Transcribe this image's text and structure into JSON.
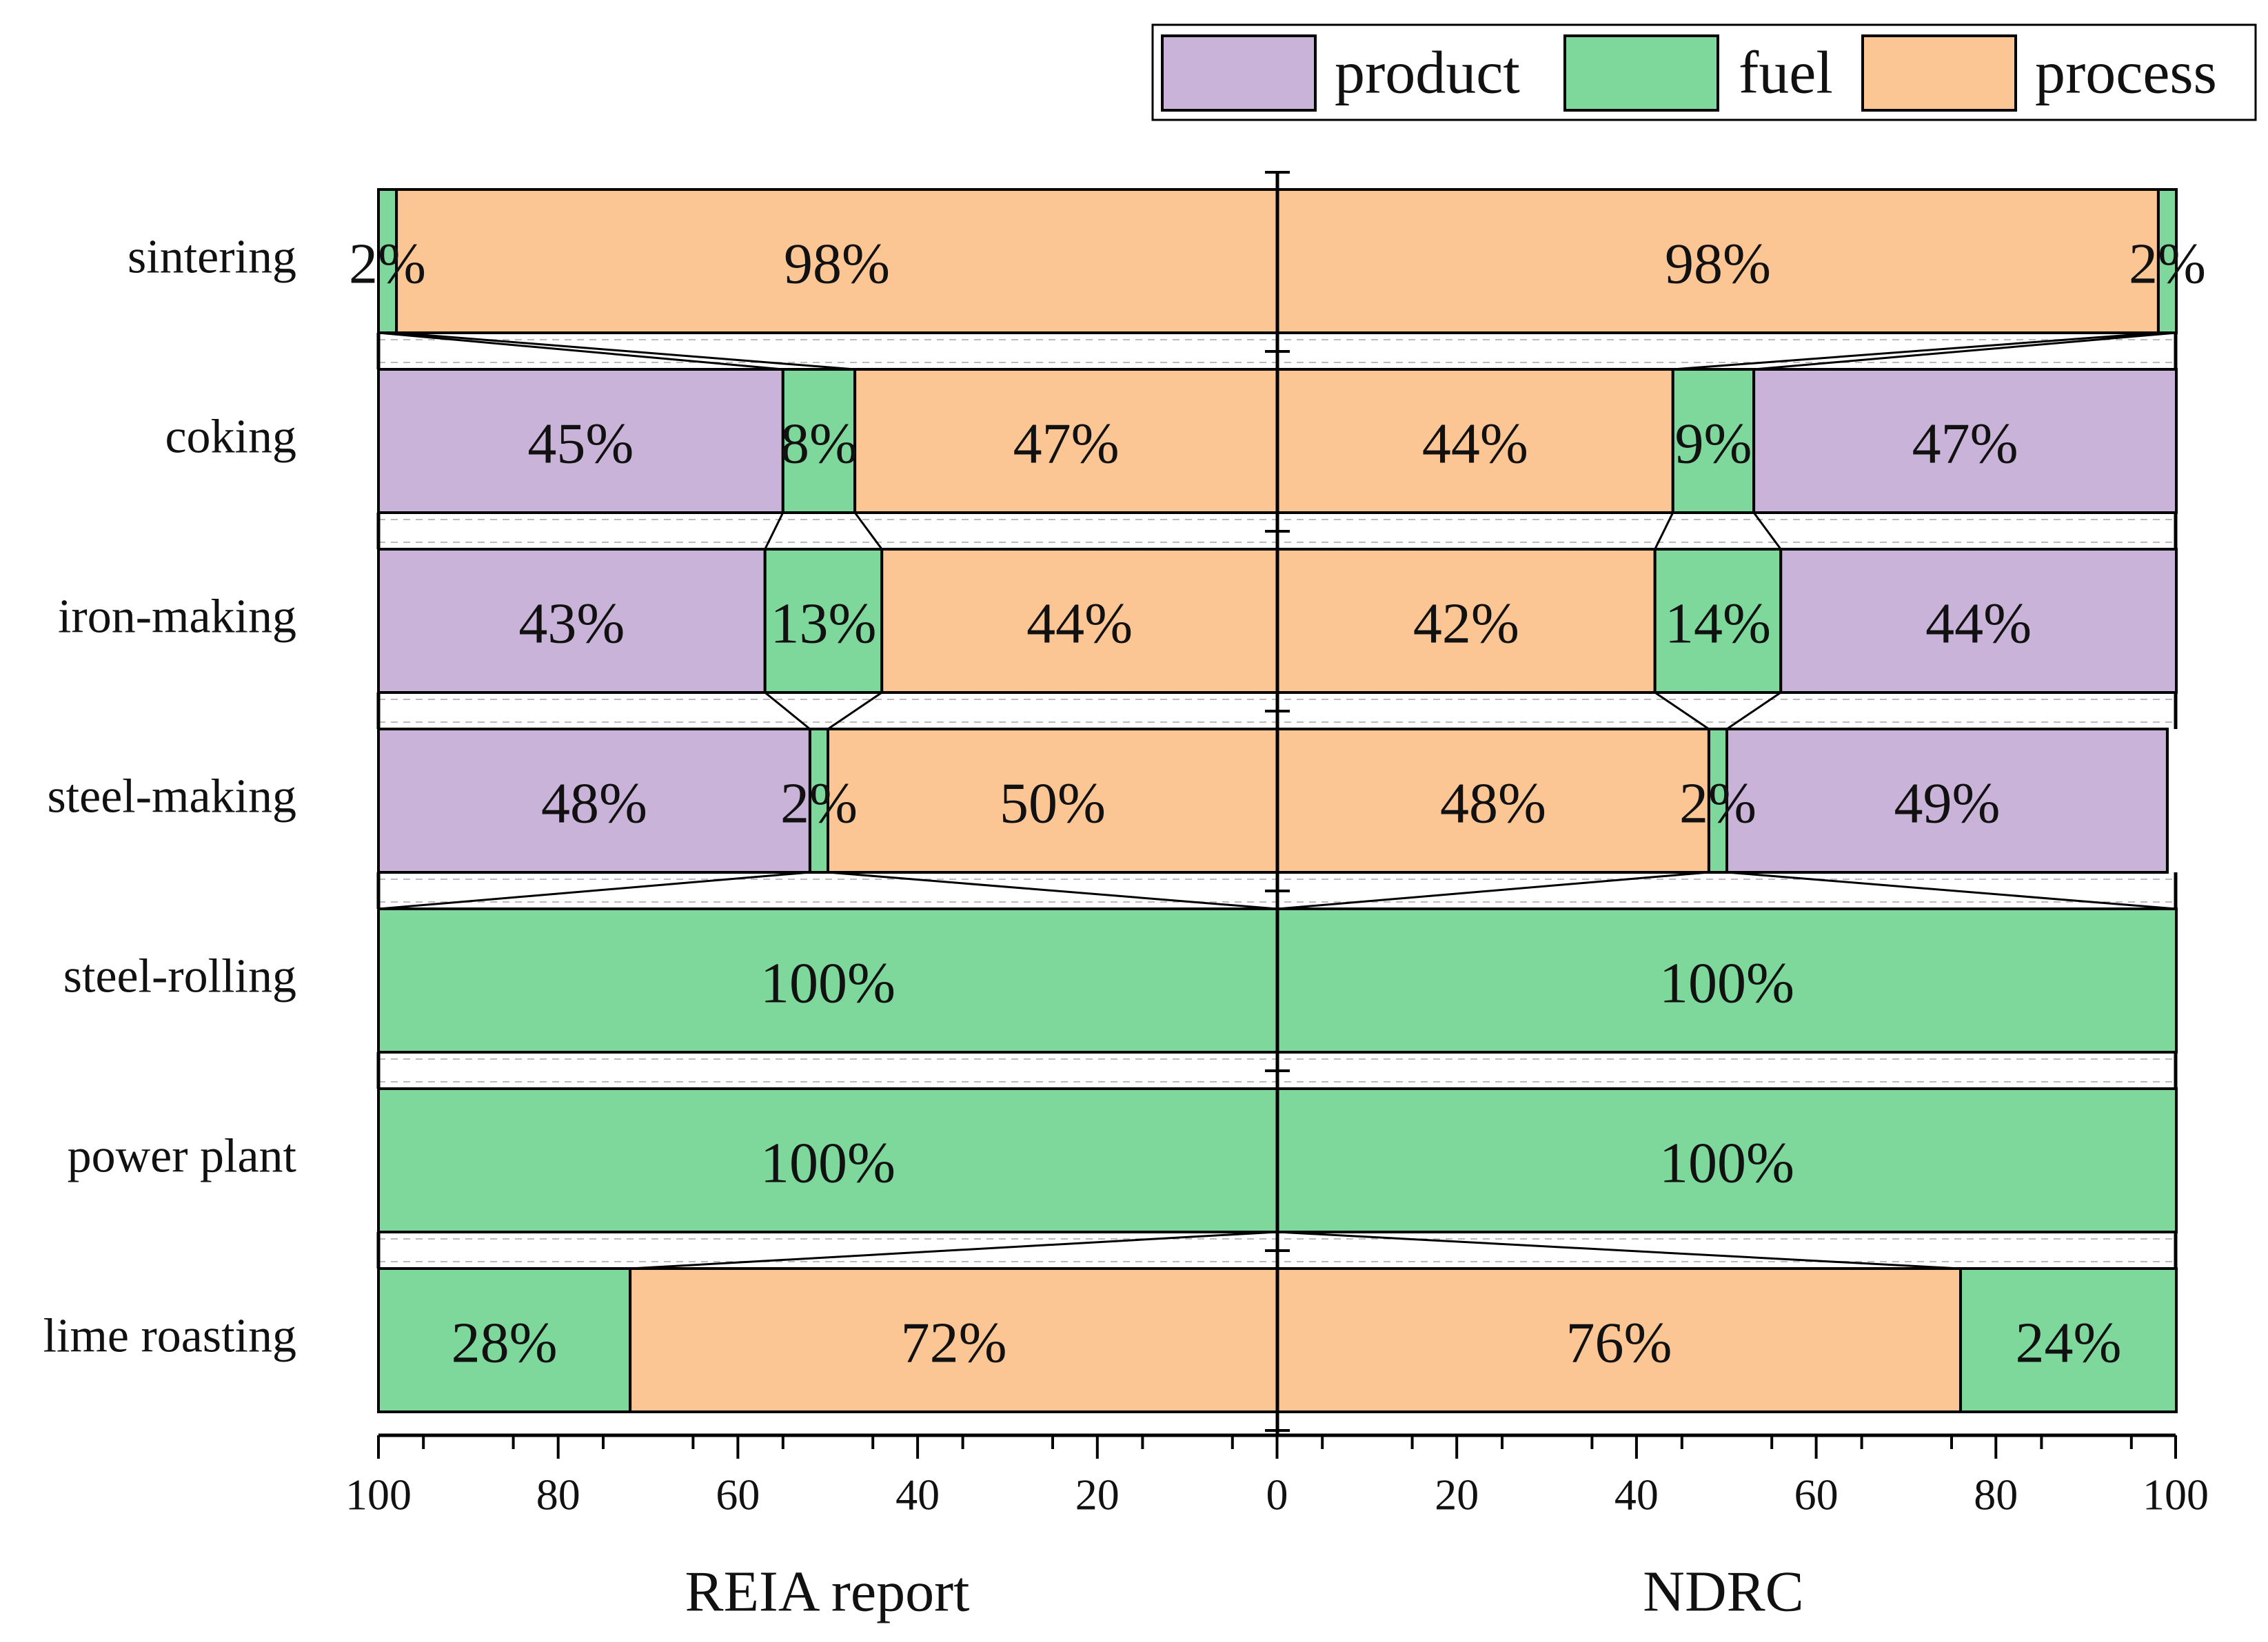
{
  "chart_data": {
    "type": "bar",
    "subtype": "mirrored-100%-stacked-horizontal-bar",
    "categories": [
      "sintering",
      "coking",
      "iron-making",
      "steel-making",
      "steel-rolling",
      "power plant",
      "lime roasting"
    ],
    "legend": {
      "placement": "top-right",
      "entries": [
        {
          "key": "product",
          "label": "product"
        },
        {
          "key": "fuel",
          "label": "fuel"
        },
        {
          "key": "process",
          "label": "process"
        }
      ]
    },
    "colors": {
      "product": "#c9b3d9",
      "fuel": "#7ed89b",
      "process": "#fbc594"
    },
    "xlim": [
      0,
      100
    ],
    "ticks": [
      100,
      80,
      60,
      40,
      20,
      0,
      20,
      40,
      60,
      80,
      100
    ],
    "sides": [
      {
        "name": "REIA report",
        "direction": "left",
        "rows": [
          [
            {
              "type": "fuel",
              "value": 2,
              "label": "2%"
            },
            {
              "type": "process",
              "value": 98,
              "label": "98%"
            }
          ],
          [
            {
              "type": "product",
              "value": 45,
              "label": "45%"
            },
            {
              "type": "fuel",
              "value": 8,
              "label": "8%"
            },
            {
              "type": "process",
              "value": 47,
              "label": "47%"
            }
          ],
          [
            {
              "type": "product",
              "value": 43,
              "label": "43%"
            },
            {
              "type": "fuel",
              "value": 13,
              "label": "13%"
            },
            {
              "type": "process",
              "value": 44,
              "label": "44%"
            }
          ],
          [
            {
              "type": "product",
              "value": 48,
              "label": "48%"
            },
            {
              "type": "fuel",
              "value": 2,
              "label": "2%"
            },
            {
              "type": "process",
              "value": 50,
              "label": "50%"
            }
          ],
          [
            {
              "type": "fuel",
              "value": 100,
              "label": "100%"
            }
          ],
          [
            {
              "type": "fuel",
              "value": 100,
              "label": "100%"
            }
          ],
          [
            {
              "type": "fuel",
              "value": 28,
              "label": "28%"
            },
            {
              "type": "process",
              "value": 72,
              "label": "72%"
            }
          ]
        ]
      },
      {
        "name": "NDRC",
        "direction": "right",
        "rows": [
          [
            {
              "type": "process",
              "value": 98,
              "label": "98%"
            },
            {
              "type": "fuel",
              "value": 2,
              "label": "2%"
            }
          ],
          [
            {
              "type": "process",
              "value": 44,
              "label": "44%"
            },
            {
              "type": "fuel",
              "value": 9,
              "label": "9%"
            },
            {
              "type": "product",
              "value": 47,
              "label": "47%"
            }
          ],
          [
            {
              "type": "process",
              "value": 42,
              "label": "42%"
            },
            {
              "type": "fuel",
              "value": 14,
              "label": "14%"
            },
            {
              "type": "product",
              "value": 44,
              "label": "44%"
            }
          ],
          [
            {
              "type": "process",
              "value": 48,
              "label": "48%"
            },
            {
              "type": "fuel",
              "value": 2,
              "label": "2%"
            },
            {
              "type": "product",
              "value": 49,
              "label": "49%"
            }
          ],
          [
            {
              "type": "fuel",
              "value": 100,
              "label": "100%"
            }
          ],
          [
            {
              "type": "fuel",
              "value": 100,
              "label": "100%"
            }
          ],
          [
            {
              "type": "process",
              "value": 76,
              "label": "76%"
            },
            {
              "type": "fuel",
              "value": 24,
              "label": "24%"
            }
          ]
        ]
      }
    ]
  }
}
